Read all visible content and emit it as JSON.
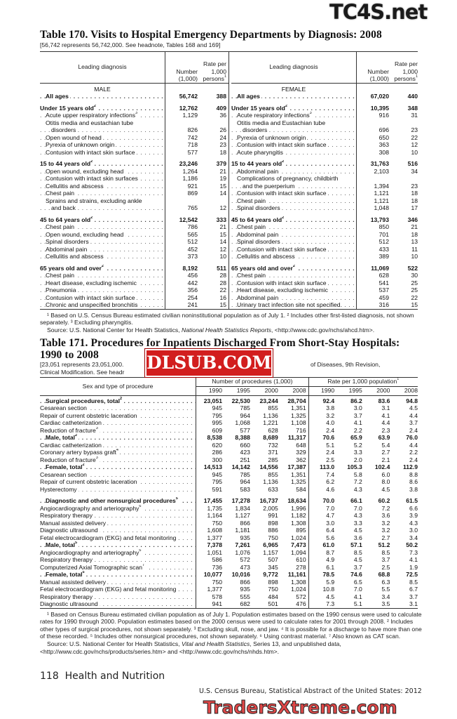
{
  "watermarks": {
    "top": "TC4S.net",
    "middle": "DLSUB.COM",
    "bottom": "TradersXtreme.com"
  },
  "t170": {
    "title": "Table 170. Visits to Hospital Emergency Departments by Diagnosis: 2008",
    "subtitle": "[56,742 represents 56,742,000. See headnote, Tables 168 and 169]",
    "headers": {
      "diag": "Leading diagnosis",
      "number": "Number",
      "number_unit": "(1,000)",
      "rate1": "Rate per",
      "rate2": "1,000",
      "rate3": "persons",
      "rate_sup": "1"
    },
    "male": {
      "heading": "MALE",
      "rows": [
        {
          "l": "All ages",
          "n": "56,742",
          "r": "388",
          "b": true,
          "ind": 1
        },
        {
          "gap": true
        },
        {
          "l": "Under 15 years old",
          "s": "2",
          "n": "12,762",
          "r": "409",
          "b": true
        },
        {
          "l": "Acute upper respiratory infections",
          "s": "3",
          "n": "1,129",
          "r": "36",
          "ind": 1
        },
        {
          "l": "Otitis media and eustachian tube",
          "ind": 1,
          "nodots": true
        },
        {
          "l": "disorders",
          "n": "826",
          "r": "26",
          "ind": 2
        },
        {
          "l": "Open wound of head",
          "n": "742",
          "r": "24",
          "ind": 1
        },
        {
          "l": "Pyrexia of unknown origin",
          "n": "718",
          "r": "23",
          "ind": 1
        },
        {
          "l": "Contusion with intact skin surface",
          "n": "577",
          "r": "18",
          "ind": 1
        },
        {
          "gap": true
        },
        {
          "l": "15 to 44 years old",
          "s": "2",
          "n": "23,246",
          "r": "379",
          "b": true
        },
        {
          "l": "Open wound, excluding head",
          "n": "1,264",
          "r": "21",
          "ind": 1
        },
        {
          "l": "Contusion with intact skin surfaces",
          "n": "1,186",
          "r": "19",
          "ind": 1
        },
        {
          "l": "Cellulitis and abscess",
          "n": "921",
          "r": "15",
          "ind": 1
        },
        {
          "l": "Chest pain",
          "n": "869",
          "r": "14",
          "ind": 1
        },
        {
          "l": "Sprains and strains, excluding ankle",
          "ind": 1,
          "nodots": true
        },
        {
          "l": "and back",
          "n": "765",
          "r": "12",
          "ind": 2
        },
        {
          "gap": true
        },
        {
          "l": "45 to 64 years old",
          "s": "2",
          "n": "12,542",
          "r": "333",
          "b": true
        },
        {
          "l": "Chest pain",
          "n": "786",
          "r": "21",
          "ind": 1
        },
        {
          "l": "Open wound, excluding head",
          "n": "565",
          "r": "15",
          "ind": 1
        },
        {
          "l": "Spinal disorders",
          "n": "512",
          "r": "14",
          "ind": 1
        },
        {
          "l": "Abdominal pain",
          "n": "452",
          "r": "12",
          "ind": 1
        },
        {
          "l": "Cellulitis and abscess",
          "n": "373",
          "r": "10",
          "ind": 1
        },
        {
          "gap": true
        },
        {
          "l": "65 years old and over",
          "s": "2",
          "n": "8,192",
          "r": "511",
          "b": true
        },
        {
          "l": "Chest pain",
          "n": "456",
          "r": "28",
          "ind": 1
        },
        {
          "l": "Heart disease, excluding ischemic",
          "n": "442",
          "r": "28",
          "ind": 1
        },
        {
          "l": "Pneumonia",
          "n": "356",
          "r": "22",
          "ind": 1
        },
        {
          "l": "Contusion with intact skin surface",
          "n": "254",
          "r": "16",
          "ind": 1
        },
        {
          "l": "Chronic and unspecified bronchitis",
          "n": "241",
          "r": "15",
          "ind": 1
        }
      ]
    },
    "female": {
      "heading": "FEMALE",
      "rows": [
        {
          "l": "All ages",
          "n": "67,020",
          "r": "440",
          "b": true,
          "ind": 1
        },
        {
          "gap": true
        },
        {
          "l": "Under 15 years old",
          "s": "2",
          "n": "10,395",
          "r": "348",
          "b": true
        },
        {
          "l": "Acute respiratory infections",
          "s": "3",
          "n": "916",
          "r": "31",
          "ind": 1
        },
        {
          "l": "Otitis media and Eustachian tube",
          "ind": 1,
          "nodots": true
        },
        {
          "l": "disorders",
          "n": "696",
          "r": "23",
          "ind": 2
        },
        {
          "l": "Pyrexia of unknown origin",
          "n": "650",
          "r": "22",
          "ind": 1
        },
        {
          "l": "Contusion with intact skin surface",
          "n": "363",
          "r": "12",
          "ind": 1
        },
        {
          "l": "Acute pharyngitis",
          "n": "308",
          "r": "10",
          "ind": 1
        },
        {
          "gap": true
        },
        {
          "l": "15 to 44 years old",
          "s": "2",
          "n": "31,763",
          "r": "516",
          "b": true
        },
        {
          "l": "Abdominal pain",
          "n": "2,103",
          "r": "34",
          "ind": 1
        },
        {
          "l": "Complications of pregnancy, childbirth",
          "ind": 1,
          "nodots": true
        },
        {
          "l": "and the puerperium",
          "n": "1,394",
          "r": "23",
          "ind": 2
        },
        {
          "l": "Contusion with intact skin surface",
          "n": "1,121",
          "r": "18",
          "ind": 1
        },
        {
          "l": "Chest pain",
          "n": "1,121",
          "r": "18",
          "ind": 1
        },
        {
          "l": "Spinal disorders",
          "n": "1,048",
          "r": "17",
          "ind": 1
        },
        {
          "gap": true
        },
        {
          "l": "45 to 64 years old",
          "s": "2",
          "n": "13,793",
          "r": "346",
          "b": true
        },
        {
          "l": "Chest pain",
          "n": "850",
          "r": "21",
          "ind": 1
        },
        {
          "l": "Abdominal pain",
          "n": "701",
          "r": "18",
          "ind": 1
        },
        {
          "l": "Spinal disorders",
          "n": "512",
          "r": "13",
          "ind": 1
        },
        {
          "l": "Contusion with intact skin surface",
          "n": "433",
          "r": "11",
          "ind": 1
        },
        {
          "l": "Cellulitis and abscess",
          "n": "389",
          "r": "10",
          "ind": 1
        },
        {
          "gap": true
        },
        {
          "l": "65 years old and over",
          "s": "2",
          "n": "11,069",
          "r": "522",
          "b": true
        },
        {
          "l": "Chest pain",
          "n": "628",
          "r": "30",
          "ind": 1
        },
        {
          "l": "Contusion with intact skin surface",
          "n": "541",
          "r": "25",
          "ind": 1
        },
        {
          "l": "Heart disease, excluding ischemic",
          "n": "537",
          "r": "25",
          "ind": 1
        },
        {
          "l": "Abdominal pain",
          "n": "459",
          "r": "22",
          "ind": 1
        },
        {
          "l": "Urinary tract infection site not specified.",
          "n": "316",
          "r": "15",
          "ind": 1
        }
      ]
    },
    "footnotes": [
      "¹ Based on U.S. Census Bureau estimated civilian noninstitutional population as of July 1. ² Includes other first-listed diagnosis, not shown separately. ³ Excluding pharyngitis."
    ],
    "source_prefix": "Source: U.S. National Center for Health Statistics, ",
    "source_italic": "National Health Statistics Reports",
    "source_suffix": ", <http://www.cdc.gov/nchs/ahcd.htm>."
  },
  "t171": {
    "title1": "Table 171. Procedures for Inpatients Discharged From Short-Stay Hospitals:",
    "title2": "1990 to 2008",
    "subtitle1_a": "[23,051 represents 23,051,000.",
    "subtitle1_b": "of Diseases, 9th Revision,",
    "subtitle2": "Clinical Modification. See headr",
    "headers": {
      "label": "Sex and type of procedure",
      "group1": "Number of procedures (1,000)",
      "group2": "Rate per 1,000 population",
      "group2_sup": "1",
      "years": [
        "1990",
        "1995",
        "2000",
        "2008"
      ]
    },
    "rows": [
      {
        "l": "Surgical procedures, total",
        "s": "2",
        "v": [
          "23,051",
          "22,530",
          "23,244",
          "28,704",
          "92.4",
          "86.2",
          "83.6",
          "94.8"
        ],
        "b": true,
        "ind": 1
      },
      {
        "l": "Cesarean section",
        "v": [
          "945",
          "785",
          "855",
          "1,351",
          "3.8",
          "3.0",
          "3.1",
          "4.5"
        ]
      },
      {
        "l": "Repair of current obstetric laceration",
        "v": [
          "795",
          "964",
          "1,136",
          "1,325",
          "3.2",
          "3.7",
          "4.1",
          "4.4"
        ]
      },
      {
        "l": "Cardiac catheterization",
        "v": [
          "995",
          "1,068",
          "1,221",
          "1,108",
          "4.0",
          "4.1",
          "4.4",
          "3.7"
        ]
      },
      {
        "l": "Reduction of fracture",
        "s": "3",
        "v": [
          "609",
          "577",
          "628",
          "716",
          "2.4",
          "2.2",
          "2.3",
          "2.4"
        ]
      },
      {
        "l": "Male, total",
        "s": "2",
        "v": [
          "8,538",
          "8,388",
          "8,689",
          "11,317",
          "70.6",
          "65.9",
          "63.9",
          "76.0"
        ],
        "b": true,
        "ind": 1
      },
      {
        "l": "Cardiac catheterization",
        "v": [
          "620",
          "660",
          "732",
          "648",
          "5.1",
          "5.2",
          "5.4",
          "4.4"
        ]
      },
      {
        "l": "Coronary artery bypass graft",
        "s": "4",
        "v": [
          "286",
          "423",
          "371",
          "329",
          "2.4",
          "3.3",
          "2.7",
          "2.2"
        ]
      },
      {
        "l": "Reduction of fracture",
        "s": "3",
        "v": [
          "300",
          "251",
          "285",
          "362",
          "2.5",
          "2.0",
          "2.1",
          "2.4"
        ]
      },
      {
        "l": "Female, total",
        "s": "2",
        "v": [
          "14,513",
          "14,142",
          "14,556",
          "17,387",
          "113.0",
          "105.3",
          "102.4",
          "112.9"
        ],
        "b": true,
        "ind": 1
      },
      {
        "l": "Cesarean section",
        "v": [
          "945",
          "785",
          "855",
          "1,351",
          "7.4",
          "5.8",
          "6.0",
          "8.8"
        ]
      },
      {
        "l": "Repair of current obstetric laceration",
        "v": [
          "795",
          "964",
          "1,136",
          "1,325",
          "6.2",
          "7.2",
          "8.0",
          "8.6"
        ]
      },
      {
        "l": "Hysterectomy",
        "v": [
          "591",
          "583",
          "633",
          "584",
          "4.6",
          "4.3",
          "4.5",
          "3.8"
        ]
      },
      {
        "gap": true
      },
      {
        "l": "Diagnostic and other nonsurgical procedures",
        "s": "5",
        "v": [
          "17,455",
          "17,278",
          "16,737",
          "18,634",
          "70.0",
          "66.1",
          "60.2",
          "61.5"
        ],
        "b": true,
        "ind": 1
      },
      {
        "l": "Angiocardiography and arteriography",
        "s": "6",
        "v": [
          "1,735",
          "1,834",
          "2,005",
          "1,996",
          "7.0",
          "7.0",
          "7.2",
          "6.6"
        ]
      },
      {
        "l": "Respiratory therapy",
        "v": [
          "1,164",
          "1,127",
          "991",
          "1,182",
          "4.7",
          "4.3",
          "3.6",
          "3.9"
        ]
      },
      {
        "l": "Manual assisted delivery",
        "v": [
          "750",
          "866",
          "898",
          "1,308",
          "3.0",
          "3.3",
          "3.2",
          "4.3"
        ]
      },
      {
        "l": "Diagnostic ultrasound",
        "v": [
          "1,608",
          "1,181",
          "886",
          "895",
          "6.4",
          "4.5",
          "3.2",
          "3.0"
        ]
      },
      {
        "l": "Fetal electrocardiogram (EKG) and fetal monitoring",
        "v": [
          "1,377",
          "935",
          "750",
          "1,024",
          "5.6",
          "3.6",
          "2.7",
          "3.4"
        ]
      },
      {
        "l": "Male, total",
        "s": "5",
        "v": [
          "7,378",
          "7,261",
          "6,965",
          "7,473",
          "61.0",
          "57.1",
          "51.2",
          "50.2"
        ],
        "b": true,
        "ind": 1
      },
      {
        "l": "Angiocardiography and arteriography",
        "s": "6",
        "v": [
          "1,051",
          "1,076",
          "1,157",
          "1,094",
          "8.7",
          "8.5",
          "8.5",
          "7.3"
        ]
      },
      {
        "l": "Respiratory therapy",
        "v": [
          "586",
          "572",
          "507",
          "610",
          "4.9",
          "4.5",
          "3.7",
          "4.1"
        ]
      },
      {
        "l": "Computerized Axial Tomographic scan",
        "s": "7",
        "v": [
          "736",
          "473",
          "345",
          "278",
          "6.1",
          "3.7",
          "2.5",
          "1.9"
        ]
      },
      {
        "l": "Female, total",
        "s": "5",
        "v": [
          "10,077",
          "10,016",
          "9,772",
          "11,161",
          "78.5",
          "74.6",
          "68.8",
          "72.5"
        ],
        "b": true,
        "ind": 1
      },
      {
        "l": "Manual assisted delivery",
        "v": [
          "750",
          "866",
          "898",
          "1,308",
          "5.9",
          "6.5",
          "6.3",
          "8.5"
        ]
      },
      {
        "l": "Fetal electrocardiogram (EKG) and fetal monitoring",
        "v": [
          "1,377",
          "935",
          "750",
          "1,024",
          "10.8",
          "7.0",
          "5.5",
          "6.7"
        ]
      },
      {
        "l": "Respiratory therapy",
        "v": [
          "578",
          "555",
          "484",
          "572",
          "4.5",
          "4.1",
          "3.4",
          "3.7"
        ]
      },
      {
        "l": "Diagnostic ultrasound",
        "v": [
          "941",
          "682",
          "501",
          "476",
          "7.3",
          "5.1",
          "3.5",
          "3.1"
        ]
      }
    ],
    "footnotes": "¹ Based on Census Bureau estimated civilian population as of July 1. Population estimates based on the 1990 census were used to calculate rates for 1990 through 2000. Population estimates based on the 2000 census were used to calculate rates for 2001 through 2008. ² Includes other types of surgical procedures, not shown separately. ³ Excluding skull, nose, and jaw. ⁴ It is possible for a discharge to have more than one of these recorded. ⁵ Includes other nonsurgical procedures, not shown separately. ⁶ Using contrast material. ⁷ Also known as CAT scan.",
    "source_prefix": "Source: U.S. National Center for Health Statistics, ",
    "source_italic": "Vital and Health Statistics",
    "source_suffix": ", Series 13, and unpublished data, <http://www.cdc.gov/nchs/products/series.htm> and <http://www.cdc.gov/nchs/nhds.htm>."
  },
  "footer": {
    "page": "118  Health and Nutrition",
    "publication": "U.S. Census Bureau, Statistical Abstract of the United States: 2012"
  }
}
